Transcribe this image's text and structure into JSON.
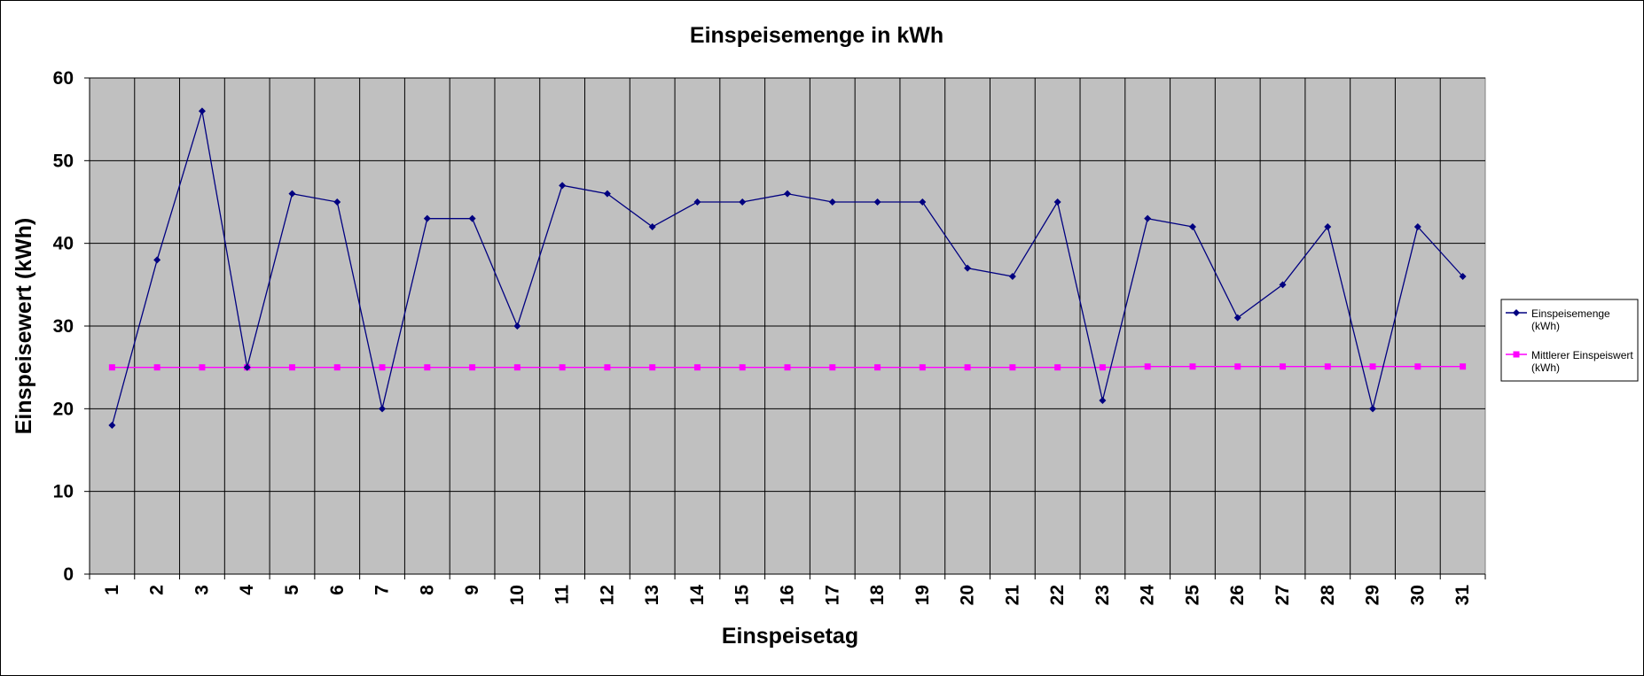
{
  "chart_data": {
    "type": "line",
    "title": "Einspeisemenge in kWh",
    "xlabel": "Einspeisetag",
    "ylabel": "Einspeisewert  (kWh)",
    "categories": [
      "1",
      "2",
      "3",
      "4",
      "5",
      "6",
      "7",
      "8",
      "9",
      "10",
      "11",
      "12",
      "13",
      "14",
      "15",
      "16",
      "17",
      "18",
      "19",
      "20",
      "21",
      "22",
      "23",
      "24",
      "25",
      "26",
      "27",
      "28",
      "29",
      "30",
      "31"
    ],
    "yticks": [
      "0",
      "10",
      "20",
      "30",
      "40",
      "50",
      "60"
    ],
    "ylim": [
      0,
      60
    ],
    "grid": true,
    "legend_position": "right",
    "plot_background": "#C0C0C0",
    "series": [
      {
        "name": "Einspeisemenge",
        "name_line2": "(kWh)",
        "color": "#000080",
        "marker": "diamond",
        "values": [
          18,
          38,
          56,
          25,
          46,
          45,
          20,
          43,
          43,
          30,
          47,
          46,
          42,
          45,
          45,
          46,
          45,
          45,
          45,
          37,
          36,
          45,
          21,
          43,
          42,
          31,
          35,
          42,
          20,
          42,
          36
        ]
      },
      {
        "name": "Mittlerer Einspeiswert",
        "name_line2": "(kWh)",
        "color": "#FF00FF",
        "marker": "square",
        "values": [
          25,
          25,
          25,
          25,
          25,
          25,
          25,
          25,
          25,
          25,
          25,
          25,
          25,
          25,
          25,
          25,
          25,
          25,
          25,
          25,
          25,
          25,
          25,
          25.1,
          25.1,
          25.1,
          25.1,
          25.1,
          25.1,
          25.1,
          25.1
        ]
      }
    ]
  }
}
